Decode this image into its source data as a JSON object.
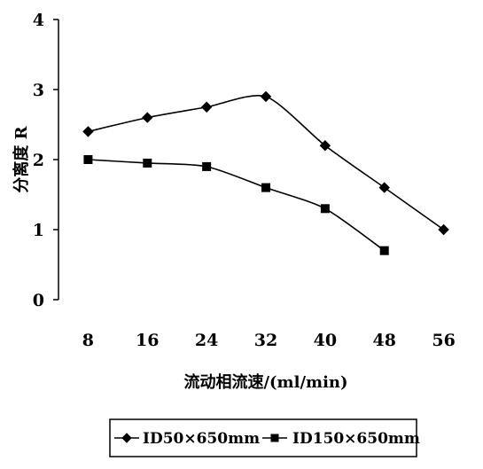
{
  "chart_data": {
    "type": "line",
    "title": "",
    "xlabel": "流动相流速/(ml/min)",
    "ylabel": "分离度 R",
    "categories": [
      "8",
      "16",
      "24",
      "32",
      "40",
      "48",
      "56"
    ],
    "x": [
      8,
      16,
      24,
      32,
      40,
      48,
      56
    ],
    "xlim": [
      4,
      60
    ],
    "ylim": [
      0,
      4
    ],
    "yticks": [
      "0",
      "1",
      "2",
      "3",
      "4"
    ],
    "grid": false,
    "legend_position": "bottom",
    "series": [
      {
        "name": "ID50×650mm",
        "marker": "diamond",
        "color": "#000000",
        "x": [
          8,
          16,
          24,
          32,
          40,
          48,
          56
        ],
        "values": [
          2.4,
          2.6,
          2.75,
          2.9,
          2.2,
          1.6,
          1.0
        ]
      },
      {
        "name": "ID150×650mm",
        "marker": "square",
        "color": "#000000",
        "x": [
          8,
          16,
          24,
          32,
          40,
          48
        ],
        "values": [
          2.0,
          1.95,
          1.9,
          1.6,
          1.3,
          0.7
        ]
      }
    ]
  }
}
